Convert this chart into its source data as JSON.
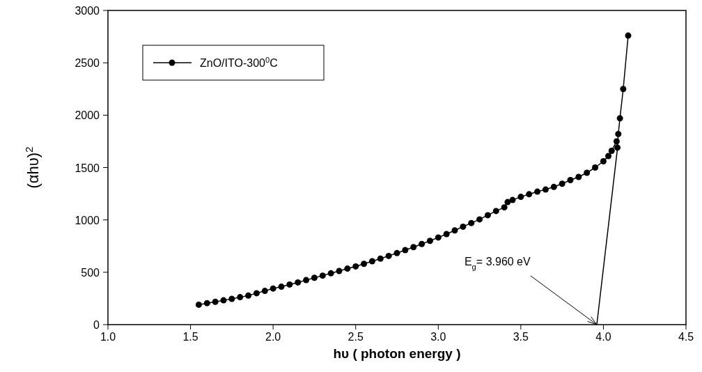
{
  "chart_data": {
    "type": "line",
    "xlabel": "hυ ( photon energy )",
    "ylabel": "(αhυ)$^{2}$",
    "xlim": [
      1.0,
      4.5
    ],
    "xticks": [
      {
        "value": 1.0,
        "label": "1.0"
      },
      {
        "value": 1.5,
        "label": "1.5"
      },
      {
        "value": 2.0,
        "label": "2.0"
      },
      {
        "value": 2.5,
        "label": "2.5"
      },
      {
        "value": 3.0,
        "label": "3.0"
      },
      {
        "value": 3.5,
        "label": "3.5"
      },
      {
        "value": 4.0,
        "label": "4.0"
      },
      {
        "value": 4.5,
        "label": "4.5"
      }
    ],
    "ylim": [
      0,
      3000
    ],
    "yticks": [
      0,
      500,
      1000,
      1500,
      2000,
      2500,
      3000
    ],
    "legend": "top left",
    "marker": "circle",
    "grid": false,
    "annotations": [
      {
        "text": "E$_{g}$= 3.960 eV",
        "x": 3.96,
        "y": 0
      }
    ],
    "series": [
      {
        "name": "ZnO/ITO-300$^{0}$C",
        "color": "#000000",
        "x": [
          1.55,
          1.6,
          1.65,
          1.7,
          1.75,
          1.8,
          1.85,
          1.9,
          1.95,
          2.0,
          2.05,
          2.1,
          2.15,
          2.2,
          2.25,
          2.3,
          2.35,
          2.4,
          2.45,
          2.5,
          2.55,
          2.6,
          2.65,
          2.7,
          2.75,
          2.8,
          2.85,
          2.9,
          2.95,
          3.0,
          3.05,
          3.1,
          3.15,
          3.2,
          3.25,
          3.3,
          3.35,
          3.4,
          3.42,
          3.45,
          3.5,
          3.55,
          3.6,
          3.65,
          3.7,
          3.75,
          3.8,
          3.85,
          3.9,
          3.95,
          4.0,
          4.03,
          4.05,
          4.08,
          4.085,
          4.09,
          4.1,
          4.12,
          4.15
        ],
        "values": [
          190,
          205,
          218,
          232,
          246,
          262,
          278,
          300,
          322,
          345,
          362,
          383,
          403,
          425,
          447,
          468,
          490,
          512,
          535,
          556,
          580,
          605,
          630,
          656,
          683,
          712,
          740,
          770,
          800,
          832,
          865,
          900,
          935,
          970,
          1005,
          1045,
          1085,
          1120,
          1170,
          1190,
          1220,
          1245,
          1270,
          1290,
          1315,
          1345,
          1380,
          1410,
          1450,
          1500,
          1560,
          1610,
          1660,
          1750,
          1690,
          1820,
          1970,
          2250,
          2760
        ]
      },
      {
        "color": "#000000",
        "marker": "none",
        "x": [
          3.96,
          4.085
        ],
        "values": [
          0,
          1680
        ]
      }
    ]
  }
}
